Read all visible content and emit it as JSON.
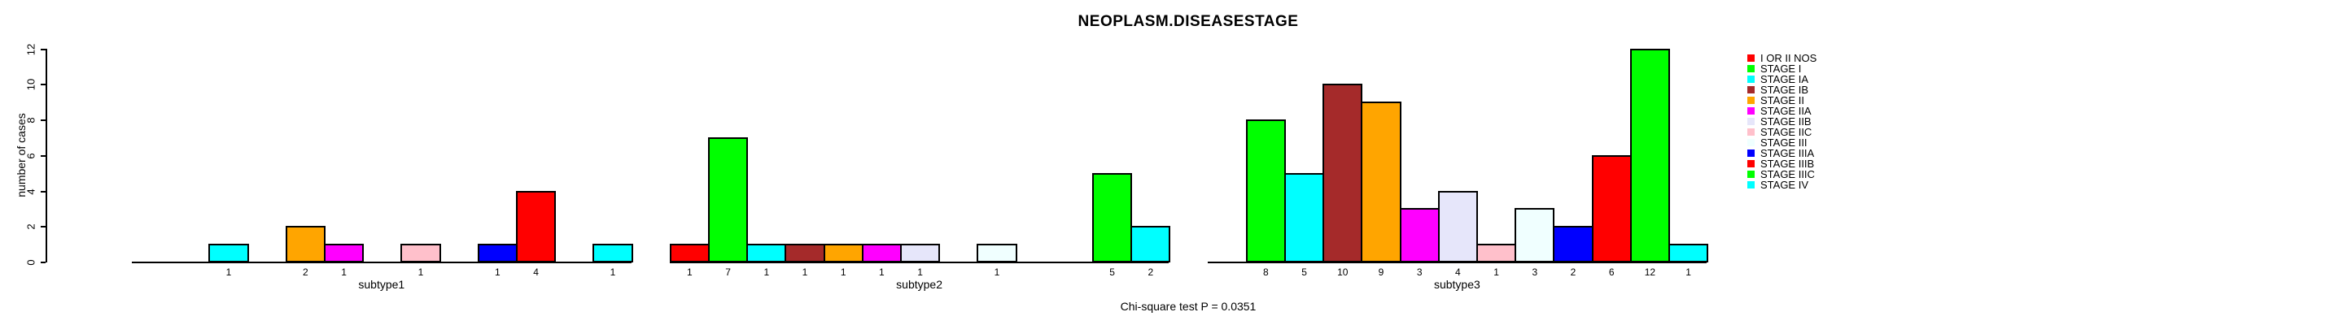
{
  "chart_data": {
    "type": "bar",
    "title": "NEOPLASM.DISEASESTAGE",
    "ylabel": "number of cases",
    "xlabel": "",
    "ylim": [
      0,
      12
    ],
    "yticks": [
      0,
      2,
      4,
      6,
      8,
      10,
      12
    ],
    "grid": false,
    "legend_position": "right",
    "bar_value_labels_shown": true,
    "series": [
      {
        "name": "I OR II NOS",
        "color": "#FF0000",
        "values": [
          0,
          1,
          0
        ]
      },
      {
        "name": "STAGE I",
        "color": "#00FF00",
        "values": [
          0,
          7,
          8
        ]
      },
      {
        "name": "STAGE IA",
        "color": "#00FFFF",
        "values": [
          1,
          1,
          5
        ]
      },
      {
        "name": "STAGE IB",
        "color": "#A52A2A",
        "values": [
          0,
          1,
          10
        ]
      },
      {
        "name": "STAGE II",
        "color": "#FFA500",
        "values": [
          2,
          1,
          9
        ]
      },
      {
        "name": "STAGE IIA",
        "color": "#FF00FF",
        "values": [
          1,
          1,
          3
        ]
      },
      {
        "name": "STAGE IIB",
        "color": "#E6E6FA",
        "values": [
          0,
          1,
          4
        ]
      },
      {
        "name": "STAGE IIC",
        "color": "#FFC0CB",
        "values": [
          1,
          0,
          1
        ]
      },
      {
        "name": "STAGE III",
        "color": "#F0FFFF",
        "values": [
          0,
          1,
          3
        ]
      },
      {
        "name": "STAGE IIIA",
        "color": "#0000FF",
        "values": [
          1,
          0,
          2
        ]
      },
      {
        "name": "STAGE IIIB",
        "color": "#FF0000",
        "values": [
          4,
          0,
          6
        ]
      },
      {
        "name": "STAGE IIIC",
        "color": "#00FF00",
        "values": [
          0,
          5,
          12
        ]
      },
      {
        "name": "STAGE IV",
        "color": "#00FFFF",
        "values": [
          1,
          2,
          1
        ]
      }
    ],
    "categories": [
      "subtype1",
      "subtype2",
      "subtype3"
    ],
    "footnote": "Chi-square test P = 0.0351",
    "legend_labels": [
      "I OR II NOS",
      "STAGE I",
      "STAGE IA",
      "STAGE IB",
      "STAGE II",
      "STAGE IIA",
      "STAGE IIB",
      "STAGE IIC",
      "STAGE III",
      "STAGE IIIA",
      "STAGE IIIB",
      "STAGE IIIC",
      "STAGE IV"
    ]
  }
}
